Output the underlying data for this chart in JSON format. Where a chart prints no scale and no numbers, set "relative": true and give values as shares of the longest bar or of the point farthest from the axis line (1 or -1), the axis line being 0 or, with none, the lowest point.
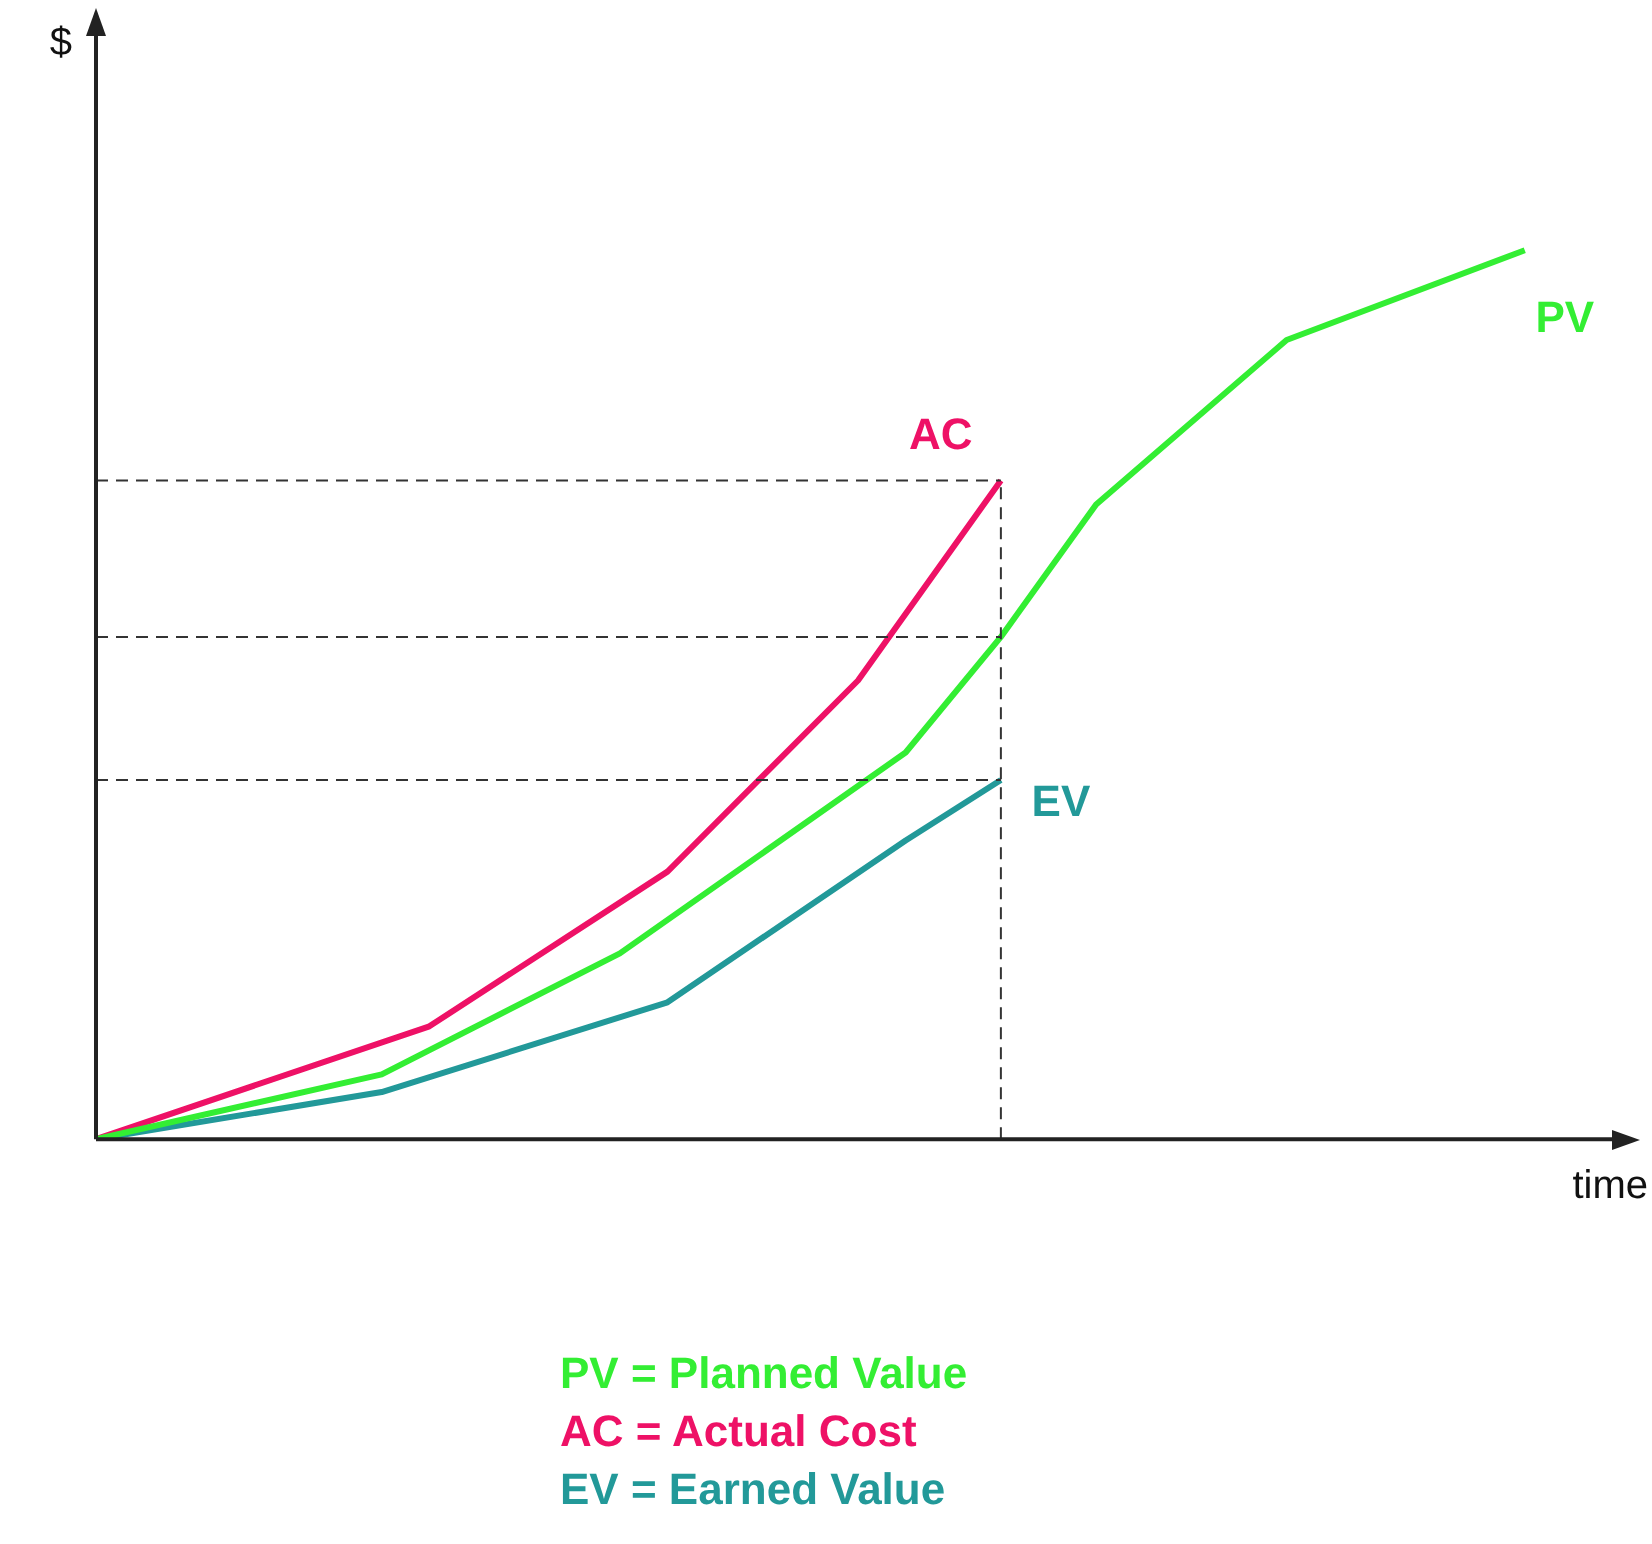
{
  "chart_data": {
    "type": "line",
    "relative": true,
    "xlabel": "time",
    "ylabel": "$",
    "grid": false,
    "legend": false,
    "marker": "none",
    "line_style": "solid",
    "categories": [
      null,
      null,
      null,
      null,
      null,
      null,
      null,
      null,
      null,
      null,
      null,
      null,
      null,
      null,
      null,
      null,
      null,
      null,
      null,
      null,
      null,
      null,
      null,
      null,
      null,
      null,
      null,
      null,
      null,
      null,
      null,
      null,
      null
    ],
    "series": [
      {
        "name": "PV",
        "color": "#33ee33",
        "values": [
          0,
          null,
          null,
          null,
          null,
          null,
          0.073,
          null,
          null,
          null,
          null,
          0.209,
          null,
          null,
          null,
          null,
          null,
          0.435,
          null,
          0.565,
          null,
          0.714,
          null,
          null,
          null,
          0.899,
          null,
          null,
          null,
          null,
          1,
          null,
          null
        ]
      },
      {
        "name": "AC",
        "color": "#ee1166",
        "values": [
          0,
          null,
          null,
          null,
          null,
          null,
          null,
          0.127,
          null,
          null,
          null,
          null,
          0.301,
          null,
          null,
          null,
          0.516,
          null,
          null,
          0.741,
          null,
          null,
          null,
          null,
          null,
          null,
          null,
          null,
          null,
          null,
          null,
          null,
          null
        ]
      },
      {
        "name": "EV",
        "color": "#229999",
        "values": [
          0,
          null,
          null,
          null,
          null,
          null,
          0.053,
          null,
          null,
          null,
          null,
          null,
          0.154,
          null,
          null,
          null,
          null,
          0.336,
          null,
          0.404,
          null,
          null,
          null,
          null,
          null,
          null,
          null,
          null,
          null,
          null,
          null,
          null,
          null
        ]
      }
    ],
    "ref_lines": [
      {
        "axis": "y",
        "value": 0.741,
        "line_style": "dashed",
        "color": "#333333"
      },
      {
        "axis": "y",
        "value": 0.565,
        "line_style": "dashed",
        "color": "#333333"
      },
      {
        "axis": "y",
        "value": 0.404,
        "line_style": "dashed",
        "color": "#333333"
      }
    ],
    "annotations": [
      "PV = Planned Value",
      "AC = Actual Cost",
      "EV = Earned Value"
    ]
  }
}
